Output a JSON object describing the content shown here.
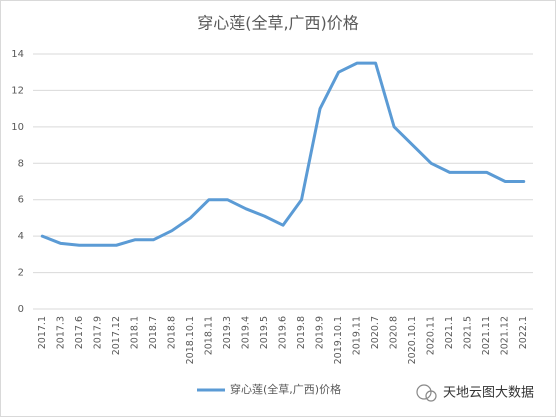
{
  "chart_data": {
    "type": "line",
    "title": "穿心莲(全草,广西)价格",
    "categories": [
      "2017.1",
      "2017.3",
      "2017.6",
      "2017.9",
      "2017.12",
      "2018.1",
      "2018.7",
      "2018.8",
      "2018.10.1",
      "2018.11",
      "2019.3",
      "2019.4",
      "2019.5",
      "2019.6",
      "2019.8",
      "2019.9",
      "2019.10.1",
      "2019.11",
      "2020.7",
      "2020.8",
      "2020.10.1",
      "2020.11",
      "2021.1",
      "2021.5",
      "2021.11",
      "2021.12",
      "2022.1"
    ],
    "series": [
      {
        "name": "穿心莲(全草,广西)价格",
        "color": "#5b9bd5",
        "values": [
          4.0,
          3.6,
          3.5,
          3.5,
          3.5,
          3.8,
          3.8,
          4.3,
          5.0,
          6.0,
          6.0,
          5.5,
          5.1,
          4.6,
          6.0,
          11.0,
          13.0,
          13.5,
          13.5,
          10.0,
          9.0,
          8.0,
          7.5,
          7.5,
          7.5,
          7.0,
          7.0
        ]
      }
    ],
    "ylim": [
      0,
      14
    ],
    "yticks": [
      0,
      2,
      4,
      6,
      8,
      10,
      12,
      14
    ],
    "grid": true,
    "legend": "bottom",
    "watermark": "天地云图大数据"
  }
}
